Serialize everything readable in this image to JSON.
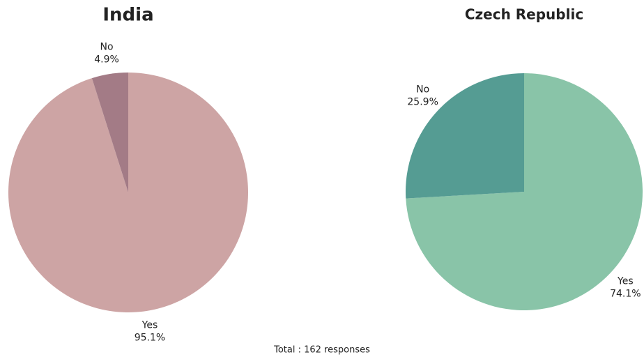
{
  "chart_data": [
    {
      "type": "pie",
      "title": "India",
      "categories": [
        "Yes",
        "No"
      ],
      "values": [
        95.1,
        4.9
      ],
      "value_labels": [
        "95.1%",
        "4.9%"
      ],
      "colors": [
        "#cda4a4",
        "#a37b86"
      ]
    },
    {
      "type": "pie",
      "title": "Czech Republic",
      "categories": [
        "Yes",
        "No"
      ],
      "values": [
        74.1,
        25.9
      ],
      "value_labels": [
        "74.1%",
        "25.9%"
      ],
      "colors": [
        "#89c4a8",
        "#559c93"
      ]
    }
  ],
  "note": "Total : 162 responses"
}
